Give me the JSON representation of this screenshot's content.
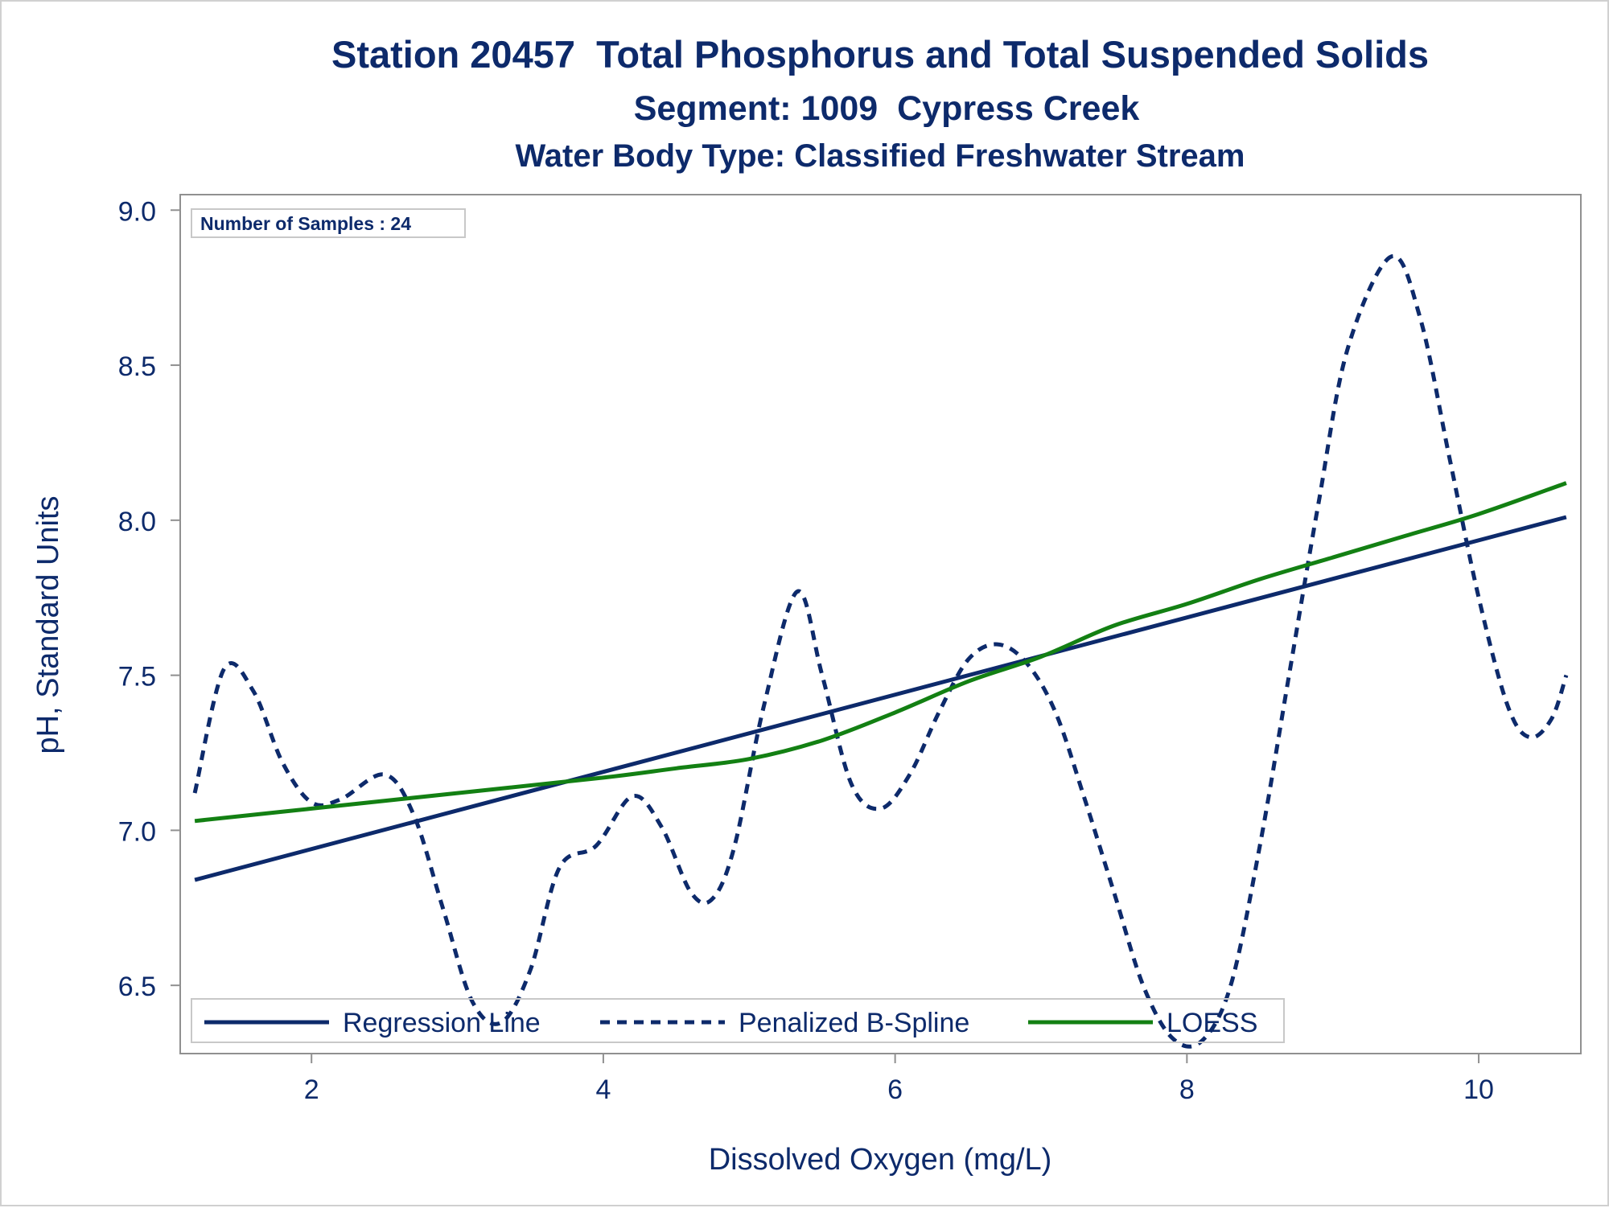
{
  "chart_data": {
    "type": "line",
    "title": "Station 20457  Total Phosphorus and Total Suspended Solids",
    "subtitle": "Segment: 1009  Cypress Creek",
    "subtitle2": "Water Body Type: Classified Freshwater Stream",
    "xlabel": "Dissolved Oxygen (mg/L)",
    "ylabel": "pH, Standard Units",
    "xlim": [
      1.1,
      10.7
    ],
    "ylim": [
      6.28,
      9.05
    ],
    "xticks": [
      2,
      4,
      6,
      8,
      10
    ],
    "xtick_labels": [
      "2",
      "4",
      "6",
      "8",
      "10"
    ],
    "yticks": [
      6.5,
      7.0,
      7.5,
      8.0,
      8.5,
      9.0
    ],
    "ytick_labels": [
      "6.5",
      "7.0",
      "7.5",
      "8.0",
      "8.5",
      "9.0"
    ],
    "grid": false,
    "legend_position": "bottom-inside",
    "inset_label": "Number of Samples : 24",
    "series": [
      {
        "name": "Regression Line",
        "style": "solid",
        "color": "#0d2a6b",
        "x": [
          1.2,
          10.6
        ],
        "y": [
          6.84,
          8.01
        ]
      },
      {
        "name": "Penalized B-Spline",
        "style": "dashed",
        "color": "#0d2a6b",
        "x": [
          1.2,
          1.4,
          1.6,
          1.8,
          2.0,
          2.2,
          2.5,
          2.7,
          2.9,
          3.1,
          3.3,
          3.5,
          3.7,
          3.95,
          4.2,
          4.4,
          4.6,
          4.75,
          4.9,
          5.1,
          5.33,
          5.5,
          5.7,
          5.9,
          6.1,
          6.3,
          6.5,
          6.7,
          6.9,
          7.1,
          7.3,
          7.5,
          7.7,
          7.9,
          8.1,
          8.3,
          8.5,
          8.7,
          8.9,
          9.1,
          9.4,
          9.6,
          9.8,
          10.0,
          10.2,
          10.35,
          10.5,
          10.6
        ],
        "y": [
          7.12,
          7.52,
          7.45,
          7.22,
          7.09,
          7.1,
          7.18,
          7.05,
          6.75,
          6.45,
          6.38,
          6.55,
          6.88,
          6.95,
          7.11,
          7.01,
          6.8,
          6.78,
          6.95,
          7.4,
          7.77,
          7.5,
          7.15,
          7.07,
          7.18,
          7.38,
          7.55,
          7.6,
          7.54,
          7.38,
          7.1,
          6.8,
          6.5,
          6.33,
          6.32,
          6.5,
          6.95,
          7.5,
          8.05,
          8.55,
          8.85,
          8.65,
          8.2,
          7.75,
          7.4,
          7.3,
          7.36,
          7.5
        ]
      },
      {
        "name": "LOESS",
        "style": "solid",
        "color": "#138013",
        "x": [
          1.2,
          2.0,
          3.0,
          4.0,
          4.5,
          5.0,
          5.5,
          6.0,
          6.5,
          7.0,
          7.5,
          8.0,
          8.5,
          9.0,
          9.5,
          10.0,
          10.6
        ],
        "y": [
          7.03,
          7.07,
          7.12,
          7.17,
          7.2,
          7.23,
          7.29,
          7.38,
          7.48,
          7.56,
          7.66,
          7.73,
          7.81,
          7.88,
          7.95,
          8.02,
          8.12
        ]
      }
    ]
  }
}
